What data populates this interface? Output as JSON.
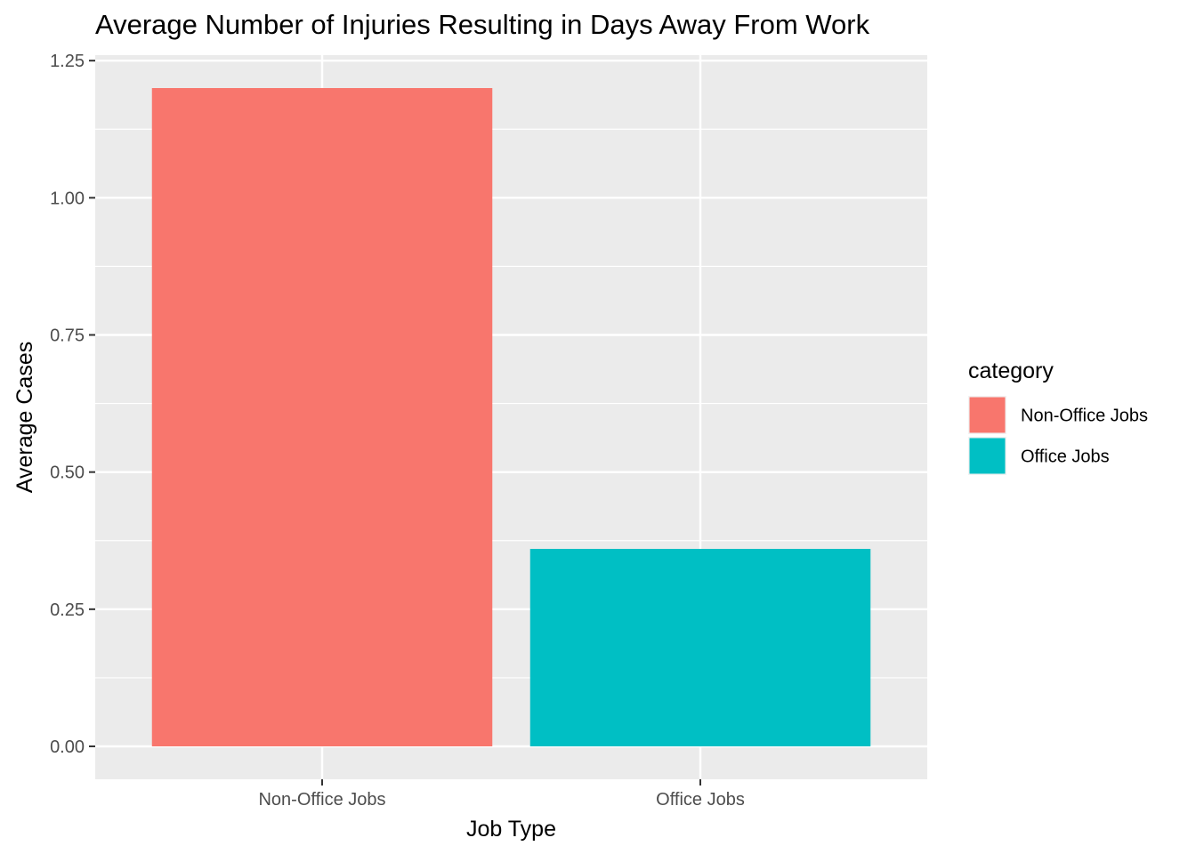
{
  "chart_data": {
    "type": "bar",
    "title": "Average Number of Injuries Resulting in Days Away From Work",
    "xlabel": "Job Type",
    "ylabel": "Average Cases",
    "categories": [
      "Non-Office Jobs",
      "Office Jobs"
    ],
    "values": [
      1.2,
      0.36
    ],
    "ylim": [
      -0.06,
      1.26
    ],
    "yticks": [
      0.0,
      0.25,
      0.5,
      0.75,
      1.0,
      1.25
    ],
    "ytick_labels": [
      "0.00",
      "0.25",
      "0.50",
      "0.75",
      "1.00",
      "1.25"
    ],
    "grid": true,
    "legend": {
      "title": "category",
      "position": "right",
      "entries": [
        {
          "label": "Non-Office Jobs",
          "color": "#F8766D"
        },
        {
          "label": "Office Jobs",
          "color": "#00BFC4"
        }
      ]
    },
    "colors": {
      "panel_background": "#EBEBEB",
      "grid_line": "#FFFFFF",
      "bar_colors": [
        "#F8766D",
        "#00BFC4"
      ]
    }
  }
}
